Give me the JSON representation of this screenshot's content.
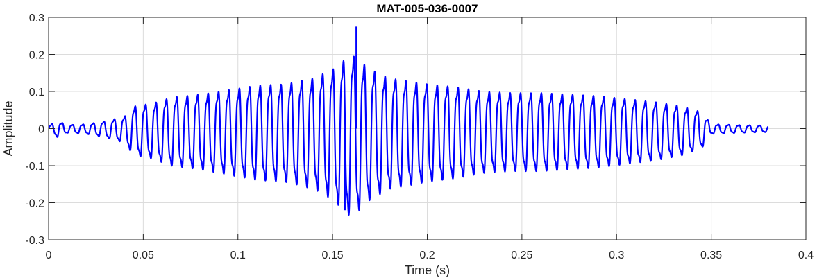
{
  "chart_data": {
    "type": "line",
    "title": "MAT-005-036-0007",
    "xlabel": "Time (s)",
    "ylabel": "Amplitude",
    "xlim": [
      0,
      0.4
    ],
    "ylim": [
      -0.3,
      0.3
    ],
    "xticks": [
      "0",
      "0.05",
      "0.1",
      "0.15",
      "0.2",
      "0.25",
      "0.3",
      "0.35",
      "0.4"
    ],
    "yticks": [
      "0.3",
      "0.2",
      "0.1",
      "0",
      "-0.1",
      "-0.2",
      "-0.3"
    ],
    "grid": true,
    "series": [
      {
        "color": "#0000ff",
        "x_range": [
          0,
          0.38
        ],
        "amplitude_envelope": [
          [
            0.0,
            0.01
          ],
          [
            0.005,
            0.025
          ],
          [
            0.01,
            0.012
          ],
          [
            0.02,
            0.015
          ],
          [
            0.03,
            0.025
          ],
          [
            0.04,
            0.04
          ],
          [
            0.045,
            0.075
          ],
          [
            0.055,
            0.085
          ],
          [
            0.065,
            0.105
          ],
          [
            0.08,
            0.115
          ],
          [
            0.095,
            0.13
          ],
          [
            0.11,
            0.145
          ],
          [
            0.125,
            0.15
          ],
          [
            0.14,
            0.17
          ],
          [
            0.15,
            0.2
          ],
          [
            0.16,
            0.25
          ],
          [
            0.17,
            0.2
          ],
          [
            0.18,
            0.17
          ],
          [
            0.19,
            0.16
          ],
          [
            0.2,
            0.15
          ],
          [
            0.215,
            0.14
          ],
          [
            0.23,
            0.125
          ],
          [
            0.245,
            0.12
          ],
          [
            0.26,
            0.12
          ],
          [
            0.275,
            0.115
          ],
          [
            0.29,
            0.11
          ],
          [
            0.305,
            0.1
          ],
          [
            0.32,
            0.09
          ],
          [
            0.335,
            0.075
          ],
          [
            0.345,
            0.055
          ],
          [
            0.35,
            0.015
          ],
          [
            0.365,
            0.012
          ],
          [
            0.38,
            0.01
          ]
        ],
        "peak_max": 0.275,
        "peak_max_time": 0.1625,
        "peak_min": -0.22,
        "peak_min_time": 0.1565,
        "oscillation_period_s": 0.0055
      }
    ]
  }
}
